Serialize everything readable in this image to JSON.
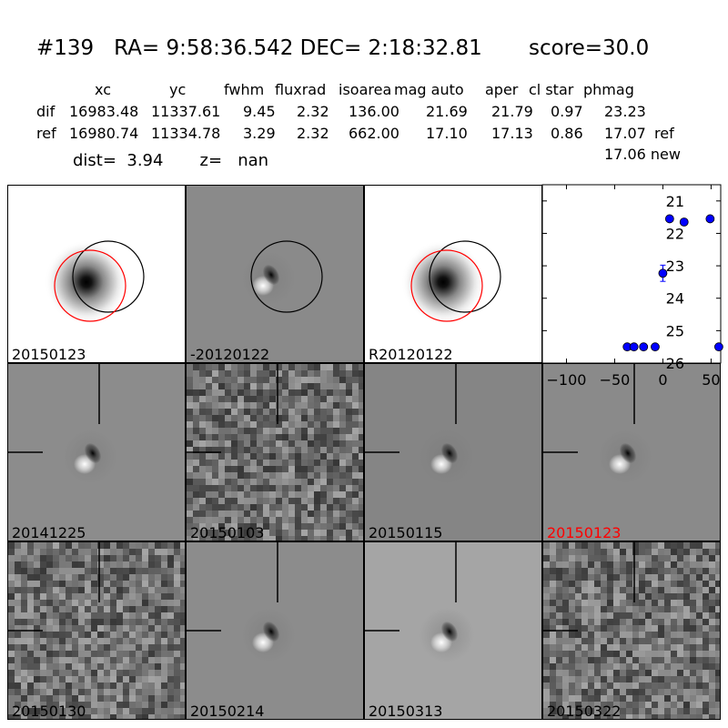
{
  "header": {
    "title": "#139   RA= 9:58:36.542 DEC= 2:18:32.81       score=30.0",
    "columns": [
      "xc",
      "yc",
      "fwhm",
      "fluxrad",
      "isoarea",
      "mag auto",
      "aper",
      "cl star",
      "phmag"
    ],
    "rows": [
      {
        "label": "dif",
        "values": [
          "16983.48",
          "11337.61",
          "9.45",
          "2.32",
          "136.00",
          "21.69",
          "21.79",
          "0.97",
          "23.23"
        ],
        "suffix": ""
      },
      {
        "label": "ref",
        "values": [
          "16980.74",
          "11334.78",
          "3.29",
          "2.32",
          "662.00",
          "17.10",
          "17.13",
          "0.86",
          "17.07"
        ],
        "suffix": "ref"
      }
    ],
    "dist_line": "dist=  3.94       z=   nan",
    "new_mag": "17.06 new"
  },
  "panels": [
    {
      "label": "20150123",
      "kind": "ref",
      "bg": "#ffffff",
      "circles": [
        "black",
        "red"
      ]
    },
    {
      "label": "-20120122",
      "kind": "dipole",
      "bg": "#8a8a8a",
      "circles": [
        "black"
      ]
    },
    {
      "label": "R20120122",
      "kind": "ref",
      "bg": "#ffffff",
      "circles": [
        "black",
        "red"
      ]
    },
    {
      "label": "20141225",
      "kind": "dipole",
      "bg": "#8c8c8c",
      "crosshair": true
    },
    {
      "label": "20150103",
      "kind": "noise",
      "bg": "#8a8a8a",
      "crosshair": true
    },
    {
      "label": "20150115",
      "kind": "dipole",
      "bg": "#858585",
      "crosshair": true
    },
    {
      "label": "20150123",
      "kind": "dipole",
      "bg": "#8a8a8a",
      "crosshair": true,
      "label_color": "#ff0000"
    },
    {
      "label": "20150130",
      "kind": "noise",
      "bg": "#909090",
      "crosshair": true
    },
    {
      "label": "20150214",
      "kind": "dipole",
      "bg": "#8c8c8c",
      "crosshair": true
    },
    {
      "label": "20150313",
      "kind": "dipole",
      "bg": "#a5a5a5",
      "crosshair": true
    },
    {
      "label": "20150322",
      "kind": "noise",
      "bg": "#888888",
      "crosshair": true
    }
  ],
  "chart_data": {
    "type": "scatter",
    "title": "",
    "xlabel": "",
    "ylabel": "",
    "xlim": [
      -125,
      60
    ],
    "ylim": [
      26,
      20.5
    ],
    "y_inverted": true,
    "xticks": [
      -100,
      -50,
      0,
      50
    ],
    "yticks": [
      21,
      22,
      23,
      24,
      25,
      26
    ],
    "marker_color": "#0000ff",
    "points": [
      {
        "x": -37,
        "y": 25.5,
        "yerr": 0.08
      },
      {
        "x": -30,
        "y": 25.5,
        "yerr": 0.08
      },
      {
        "x": -20,
        "y": 25.5,
        "yerr": 0.08
      },
      {
        "x": -8,
        "y": 25.5,
        "yerr": 0.08
      },
      {
        "x": 0,
        "y": 23.23,
        "yerr": 0.25
      },
      {
        "x": 7,
        "y": 21.55,
        "yerr": 0.04
      },
      {
        "x": 22,
        "y": 21.65,
        "yerr": 0.04
      },
      {
        "x": 49,
        "y": 21.55,
        "yerr": 0.04
      },
      {
        "x": 58,
        "y": 25.5,
        "yerr": 0.08
      }
    ]
  }
}
